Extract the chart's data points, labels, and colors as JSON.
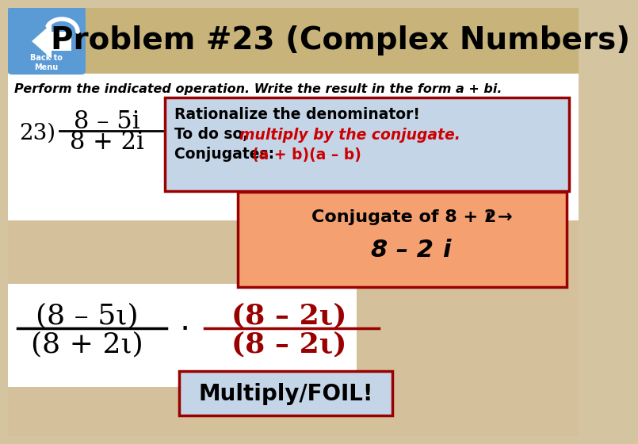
{
  "bg_color": "#d4c4a0",
  "title": "Problem #23 (Complex Numbers)",
  "title_color": "#000000",
  "title_fontsize": 28,
  "white_box_color": "#ffffff",
  "blue_box_color": "#c5d5e8",
  "orange_box_color": "#f4a070",
  "dark_red": "#990000",
  "bright_red": "#cc0000",
  "blue_button": "#4ea6dc",
  "perform_text": "Perform the indicated operation. Write the result in the form a + bi.",
  "back_to_menu": "Back to\nMenu",
  "multiply_foil": "Multiply/FOIL!"
}
